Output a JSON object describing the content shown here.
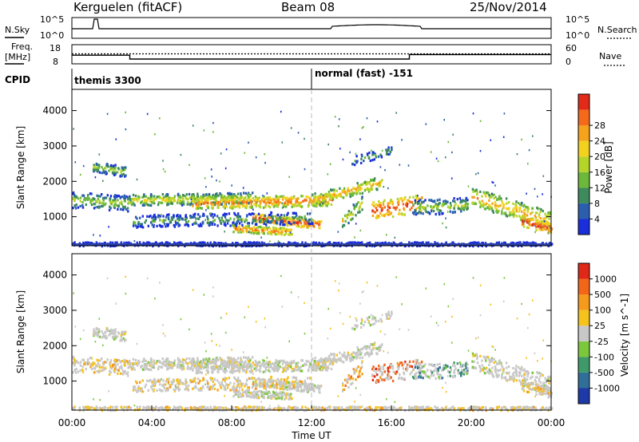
{
  "header": {
    "station": "Kerguelen (fitACF)",
    "beam": "Beam 08",
    "date": "25/Nov/2014"
  },
  "noise_panel": {
    "left_label": "N.Sky",
    "right_label": "N.Search",
    "left_ticks": [
      "10^5",
      "10^0"
    ],
    "right_ticks": [
      "10^5",
      "10^0"
    ]
  },
  "freq_panel": {
    "left_label_line1": "Freq.",
    "left_label_line2": "[MHz]",
    "right_label": "Nave",
    "left_ticks": [
      "18",
      "8"
    ],
    "right_ticks": [
      "60",
      "0"
    ]
  },
  "cpid": {
    "label": "CPID",
    "modes": [
      {
        "name": "themis 3300",
        "start_hour": 0
      },
      {
        "name": "normal (fast) -151",
        "start_hour": 12
      }
    ]
  },
  "chart_data": [
    {
      "type": "heatmap",
      "name": "power-range-time",
      "ylabel": "Slant Range [km]",
      "yticks": [
        1000,
        2000,
        3000,
        4000
      ],
      "ylim": [
        180,
        4600
      ],
      "xlim_hours": [
        0,
        24
      ],
      "colorbar": {
        "label": "Power [dB]",
        "ticks": [
          4,
          8,
          12,
          16,
          20,
          24,
          28
        ],
        "colors": [
          "#1a2edb",
          "#2b5fae",
          "#3d8a5c",
          "#6cb83a",
          "#b5d42a",
          "#f2d21e",
          "#f5a21c",
          "#f36a1a",
          "#e22a18"
        ]
      }
    },
    {
      "type": "heatmap",
      "name": "velocity-range-time",
      "ylabel": "Slant Range [km]",
      "yticks": [
        1000,
        2000,
        3000,
        4000
      ],
      "ylim": [
        180,
        4600
      ],
      "xlim_hours": [
        0,
        24
      ],
      "colorbar": {
        "label": "Velocity [m s^-1]",
        "ticks": [
          "1000",
          "500",
          "100",
          "25",
          "-25",
          "-100",
          "-500",
          "-1000"
        ],
        "colors": [
          "#1e3aa8",
          "#2f6f9a",
          "#3f9a6a",
          "#7cc83c",
          "#c8c8c8",
          "#f5c21e",
          "#f59a1c",
          "#f2661a",
          "#e02818"
        ]
      }
    }
  ],
  "x_axis": {
    "label": "Time UT",
    "ticks": [
      "00:00",
      "04:00",
      "08:00",
      "12:00",
      "16:00",
      "20:00",
      "00:00"
    ]
  }
}
